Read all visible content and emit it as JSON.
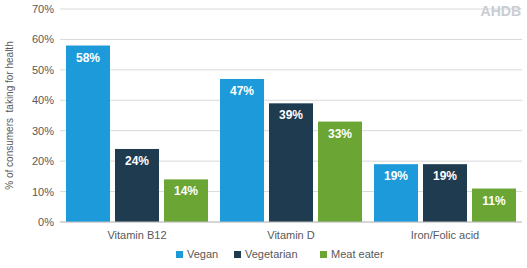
{
  "chart_data": {
    "type": "bar",
    "y_label": "% of consumers  taking for health",
    "annotations": [
      "AHDB"
    ],
    "categories": [
      "Vitamin B12",
      "Vitamin D",
      "Iron/Folic acid"
    ],
    "series": [
      {
        "name": "Vegan",
        "color": "#1d9ad9",
        "values": [
          58,
          47,
          19
        ],
        "value_labels": [
          "58%",
          "47%",
          "19%"
        ]
      },
      {
        "name": "Vegetarian",
        "color": "#1f3b4f",
        "values": [
          24,
          39,
          19
        ],
        "value_labels": [
          "24%",
          "39%",
          "19%"
        ]
      },
      {
        "name": "Meat eater",
        "color": "#6ba534",
        "values": [
          14,
          33,
          11
        ],
        "value_labels": [
          "14%",
          "33%",
          "11%"
        ]
      }
    ],
    "ylim": [
      0,
      70
    ],
    "yticks": [
      {
        "value": 0,
        "label": "0%"
      },
      {
        "value": 10,
        "label": "10%"
      },
      {
        "value": 20,
        "label": "20%"
      },
      {
        "value": 30,
        "label": "30%"
      },
      {
        "value": 40,
        "label": "40%"
      },
      {
        "value": 50,
        "label": "50%"
      },
      {
        "value": 60,
        "label": "60%"
      },
      {
        "value": 70,
        "label": "70%"
      }
    ],
    "grid": true,
    "legend": "bottom",
    "data_labels": true
  }
}
